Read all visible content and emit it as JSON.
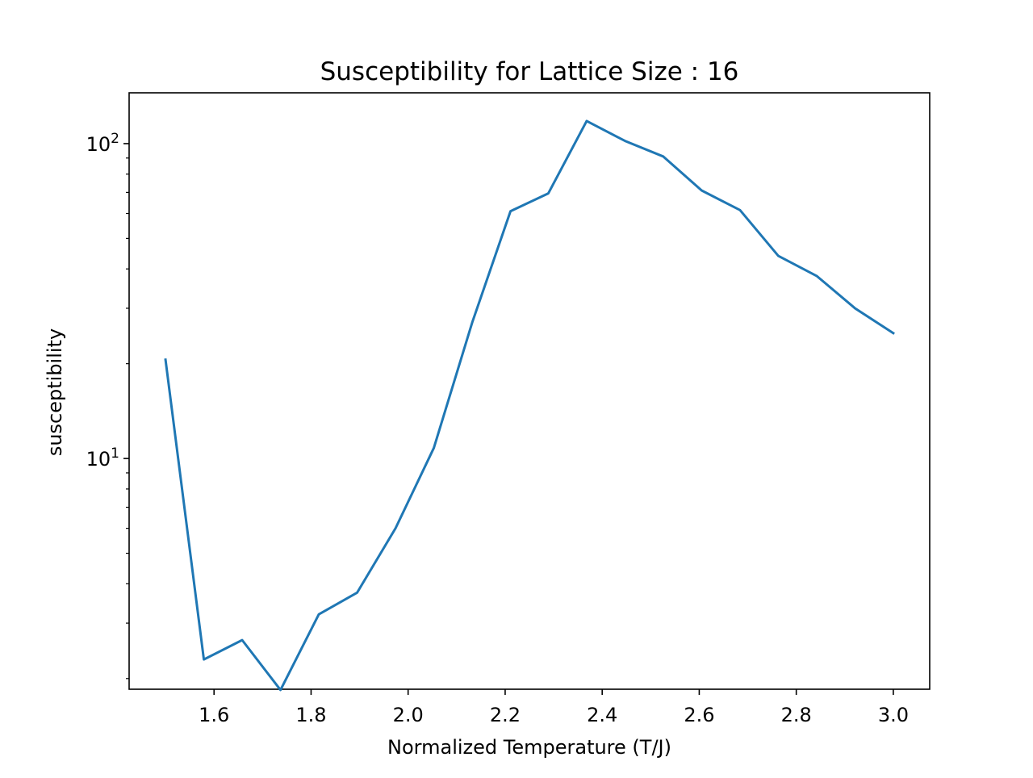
{
  "chart_data": {
    "type": "line",
    "title": "Susceptibility for Lattice Size : 16",
    "xlabel": "Normalized Temperature (T/J)",
    "ylabel": "susceptibility",
    "x_ticks": [
      "1.6",
      "1.8",
      "2.0",
      "2.2",
      "2.4",
      "2.6",
      "2.8",
      "3.0"
    ],
    "x_tick_values": [
      1.6,
      1.8,
      2.0,
      2.2,
      2.4,
      2.6,
      2.8,
      3.0
    ],
    "y_ticks": [
      {
        "value": 10,
        "base": "10",
        "exponent": "1"
      },
      {
        "value": 100,
        "base": "10",
        "exponent": "2"
      }
    ],
    "y_scale": "log",
    "xlim": [
      1.425,
      3.075
    ],
    "ylim": [
      1.85,
      145
    ],
    "grid": false,
    "legend": "none",
    "series": [
      {
        "color": "#1f77b4",
        "x": [
          1.5,
          1.579,
          1.658,
          1.737,
          1.816,
          1.895,
          1.974,
          2.053,
          2.132,
          2.211,
          2.289,
          2.368,
          2.447,
          2.526,
          2.605,
          2.684,
          2.763,
          2.842,
          2.921,
          3.0
        ],
        "y": [
          20.6,
          2.3,
          2.65,
          1.84,
          3.2,
          3.75,
          6.0,
          10.8,
          27.0,
          61.0,
          69.5,
          118.0,
          102.0,
          91.0,
          71.0,
          61.5,
          44.0,
          38.0,
          30.0,
          25.0
        ]
      }
    ]
  }
}
